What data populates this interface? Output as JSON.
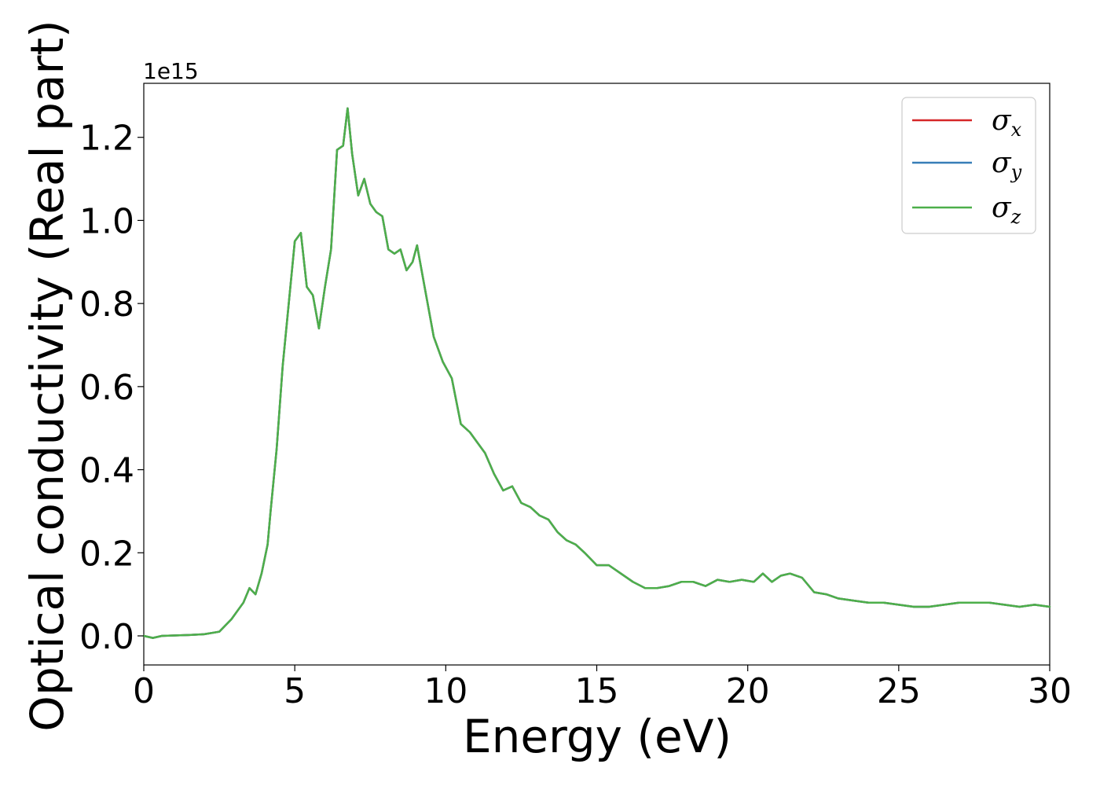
{
  "chart_data": {
    "type": "line",
    "title": "",
    "xlabel": "Energy (eV)",
    "ylabel": "Optical conductivity (Real part)",
    "y_offset_label": "1e15",
    "xlim": [
      0,
      30
    ],
    "ylim": [
      -0.07,
      1.33
    ],
    "x_ticks": [
      0,
      5,
      10,
      15,
      20,
      25,
      30
    ],
    "x_tick_labels": [
      "0",
      "5",
      "10",
      "15",
      "20",
      "25",
      "30"
    ],
    "y_ticks": [
      0.0,
      0.2,
      0.4,
      0.6,
      0.8,
      1.0,
      1.2
    ],
    "y_tick_labels": [
      "0.0",
      "0.2",
      "0.4",
      "0.6",
      "0.8",
      "1.0",
      "1.2"
    ],
    "grid": false,
    "legend_position": "top-right",
    "x": [
      0,
      0.3,
      0.6,
      1.0,
      1.5,
      2.0,
      2.5,
      2.7,
      2.9,
      3.1,
      3.3,
      3.5,
      3.7,
      3.9,
      4.1,
      4.2,
      4.4,
      4.6,
      4.8,
      5.0,
      5.2,
      5.4,
      5.6,
      5.8,
      6.0,
      6.2,
      6.4,
      6.6,
      6.75,
      6.9,
      7.1,
      7.3,
      7.5,
      7.7,
      7.9,
      8.1,
      8.3,
      8.5,
      8.7,
      8.9,
      9.05,
      9.3,
      9.6,
      9.9,
      10.2,
      10.5,
      10.8,
      11.0,
      11.3,
      11.6,
      11.9,
      12.2,
      12.5,
      12.8,
      13.1,
      13.4,
      13.7,
      14.0,
      14.3,
      14.6,
      15.0,
      15.4,
      15.8,
      16.2,
      16.6,
      17.0,
      17.4,
      17.8,
      18.2,
      18.6,
      19.0,
      19.4,
      19.8,
      20.2,
      20.5,
      20.8,
      21.1,
      21.4,
      21.8,
      22.2,
      22.6,
      23.0,
      23.5,
      24.0,
      24.5,
      25.0,
      25.5,
      26.0,
      26.5,
      27.0,
      27.5,
      28.0,
      28.5,
      29.0,
      29.5,
      30.0
    ],
    "series": [
      {
        "name": "σx",
        "label_base": "σ",
        "label_sub": "x",
        "color": "#d62728",
        "values": [
          0.0,
          -0.005,
          0.0,
          0.001,
          0.002,
          0.004,
          0.01,
          0.025,
          0.04,
          0.06,
          0.08,
          0.115,
          0.1,
          0.15,
          0.22,
          0.3,
          0.45,
          0.65,
          0.8,
          0.95,
          0.97,
          0.84,
          0.82,
          0.74,
          0.84,
          0.93,
          1.17,
          1.18,
          1.27,
          1.16,
          1.06,
          1.1,
          1.04,
          1.02,
          1.01,
          0.93,
          0.92,
          0.93,
          0.88,
          0.9,
          0.94,
          0.84,
          0.72,
          0.66,
          0.62,
          0.51,
          0.49,
          0.47,
          0.44,
          0.39,
          0.35,
          0.36,
          0.32,
          0.31,
          0.29,
          0.28,
          0.25,
          0.23,
          0.22,
          0.2,
          0.17,
          0.17,
          0.15,
          0.13,
          0.115,
          0.115,
          0.12,
          0.13,
          0.13,
          0.12,
          0.135,
          0.13,
          0.135,
          0.13,
          0.15,
          0.13,
          0.145,
          0.15,
          0.14,
          0.105,
          0.1,
          0.09,
          0.085,
          0.08,
          0.08,
          0.075,
          0.07,
          0.07,
          0.075,
          0.08,
          0.08,
          0.08,
          0.075,
          0.07,
          0.075,
          0.07
        ]
      },
      {
        "name": "σy",
        "label_base": "σ",
        "label_sub": "y",
        "color": "#377eb8",
        "values": [
          0.0,
          -0.005,
          0.0,
          0.001,
          0.002,
          0.004,
          0.01,
          0.025,
          0.04,
          0.06,
          0.08,
          0.115,
          0.1,
          0.15,
          0.22,
          0.3,
          0.45,
          0.65,
          0.8,
          0.95,
          0.97,
          0.84,
          0.82,
          0.74,
          0.84,
          0.93,
          1.17,
          1.18,
          1.27,
          1.16,
          1.06,
          1.1,
          1.04,
          1.02,
          1.01,
          0.93,
          0.92,
          0.93,
          0.88,
          0.9,
          0.94,
          0.84,
          0.72,
          0.66,
          0.62,
          0.51,
          0.49,
          0.47,
          0.44,
          0.39,
          0.35,
          0.36,
          0.32,
          0.31,
          0.29,
          0.28,
          0.25,
          0.23,
          0.22,
          0.2,
          0.17,
          0.17,
          0.15,
          0.13,
          0.115,
          0.115,
          0.12,
          0.13,
          0.13,
          0.12,
          0.135,
          0.13,
          0.135,
          0.13,
          0.15,
          0.13,
          0.145,
          0.15,
          0.14,
          0.105,
          0.1,
          0.09,
          0.085,
          0.08,
          0.08,
          0.075,
          0.07,
          0.07,
          0.075,
          0.08,
          0.08,
          0.08,
          0.075,
          0.07,
          0.075,
          0.07
        ]
      },
      {
        "name": "σz",
        "label_base": "σ",
        "label_sub": "z",
        "color": "#4daf4a",
        "values": [
          0.0,
          -0.005,
          0.0,
          0.001,
          0.002,
          0.004,
          0.01,
          0.025,
          0.04,
          0.06,
          0.08,
          0.115,
          0.1,
          0.15,
          0.22,
          0.3,
          0.45,
          0.65,
          0.8,
          0.95,
          0.97,
          0.84,
          0.82,
          0.74,
          0.84,
          0.93,
          1.17,
          1.18,
          1.27,
          1.16,
          1.06,
          1.1,
          1.04,
          1.02,
          1.01,
          0.93,
          0.92,
          0.93,
          0.88,
          0.9,
          0.94,
          0.84,
          0.72,
          0.66,
          0.62,
          0.51,
          0.49,
          0.47,
          0.44,
          0.39,
          0.35,
          0.36,
          0.32,
          0.31,
          0.29,
          0.28,
          0.25,
          0.23,
          0.22,
          0.2,
          0.17,
          0.17,
          0.15,
          0.13,
          0.115,
          0.115,
          0.12,
          0.13,
          0.13,
          0.12,
          0.135,
          0.13,
          0.135,
          0.13,
          0.15,
          0.13,
          0.145,
          0.15,
          0.14,
          0.105,
          0.1,
          0.09,
          0.085,
          0.08,
          0.08,
          0.075,
          0.07,
          0.07,
          0.075,
          0.08,
          0.08,
          0.08,
          0.075,
          0.07,
          0.075,
          0.07
        ]
      }
    ]
  }
}
